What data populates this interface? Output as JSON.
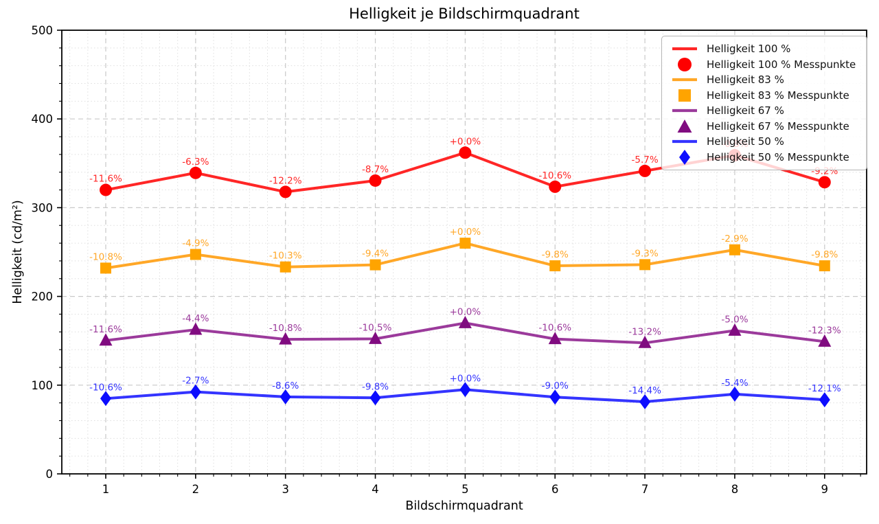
{
  "figure": {
    "title": "Helligkeit je Bildschirmquadrant",
    "xlabel": "Bildschirmquadrant",
    "ylabel": "Helligkeit (cd/m²)"
  },
  "chart_data": {
    "type": "line",
    "title": "Helligkeit je Bildschirmquadrant",
    "xlabel": "Bildschirmquadrant",
    "ylabel": "Helligkeit (cd/m²)",
    "x": [
      1,
      2,
      3,
      4,
      5,
      6,
      7,
      8,
      9
    ],
    "xticks": [
      1,
      2,
      3,
      4,
      5,
      6,
      7,
      8,
      9
    ],
    "yticks": [
      0,
      100,
      200,
      300,
      400,
      500
    ],
    "ylim": [
      0,
      500
    ],
    "xlim": [
      0.51,
      9.47
    ],
    "grid": true,
    "legend_position": "upper right",
    "series": [
      {
        "name": "Helligkeit 100 %",
        "points_name": "Helligkeit 100 % Messpunkte",
        "marker": "circle",
        "line_color": "#ff2626",
        "marker_color": "#fe0000",
        "values": [
          320.0,
          339.2,
          317.8,
          330.5,
          362.0,
          323.6,
          341.4,
          359.1,
          328.7
        ],
        "point_labels": [
          "-11.6%",
          "-6.3%",
          "-12.2%",
          "-8.7%",
          "+0.0%",
          "-10.6%",
          "-5.7%",
          "-0.8%",
          "-9.2%"
        ]
      },
      {
        "name": "Helligkeit 83 %",
        "points_name": "Helligkeit 83 % Messpunkte",
        "marker": "square",
        "line_color": "#ffa727",
        "marker_color": "#ffa400",
        "values": [
          231.9,
          247.3,
          233.2,
          235.6,
          260.0,
          234.5,
          235.8,
          252.5,
          234.5
        ],
        "point_labels": [
          "-10.8%",
          "-4.9%",
          "-10.3%",
          "-9.4%",
          "+0.0%",
          "-9.8%",
          "-9.3%",
          "-2.9%",
          "-9.8%"
        ]
      },
      {
        "name": "Helligkeit 67 %",
        "points_name": "Helligkeit 67 % Messpunkte",
        "marker": "triangle",
        "line_color": "#9b3a9b",
        "marker_color": "#800b80",
        "values": [
          150.3,
          162.5,
          151.6,
          152.2,
          170.0,
          152.0,
          147.6,
          161.5,
          149.1
        ],
        "point_labels": [
          "-11.6%",
          "-4.4%",
          "-10.8%",
          "-10.5%",
          "+0.0%",
          "-10.6%",
          "-13.2%",
          "-5.0%",
          "-12.3%"
        ]
      },
      {
        "name": "Helligkeit 50 %",
        "points_name": "Helligkeit 50 % Messpunkte",
        "marker": "diamond",
        "line_color": "#3434ff",
        "marker_color": "#0d0dfe",
        "values": [
          84.9,
          92.4,
          86.8,
          85.7,
          95.0,
          86.5,
          81.3,
          89.9,
          83.5
        ],
        "point_labels": [
          "-10.6%",
          "-2.7%",
          "-8.6%",
          "-9.8%",
          "+0.0%",
          "-9.0%",
          "-14.4%",
          "-5.4%",
          "-12.1%"
        ]
      }
    ]
  },
  "legend": {
    "items": [
      {
        "label": "Helligkeit 100 %",
        "swatch": "line",
        "series": 0
      },
      {
        "label": "Helligkeit 100 % Messpunkte",
        "swatch": "circle",
        "series": 0
      },
      {
        "label": "Helligkeit 83 %",
        "swatch": "line",
        "series": 1
      },
      {
        "label": "Helligkeit 83 % Messpunkte",
        "swatch": "square",
        "series": 1
      },
      {
        "label": "Helligkeit 67 %",
        "swatch": "line",
        "series": 2
      },
      {
        "label": "Helligkeit 67 % Messpunkte",
        "swatch": "triangle",
        "series": 2
      },
      {
        "label": "Helligkeit 50 %",
        "swatch": "line",
        "series": 3
      },
      {
        "label": "Helligkeit 50 % Messpunkte",
        "swatch": "diamond",
        "series": 3
      }
    ]
  }
}
